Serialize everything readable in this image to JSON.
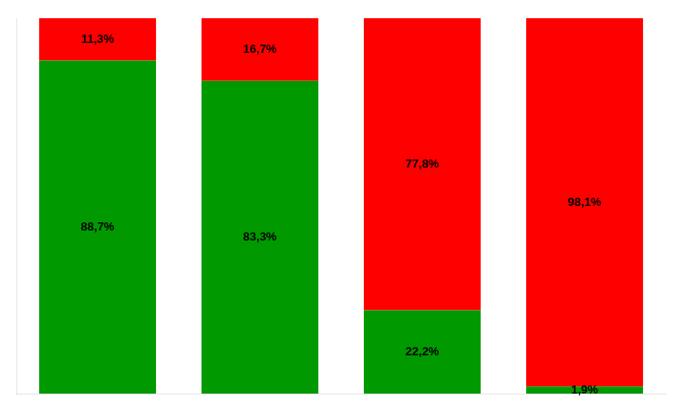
{
  "chart_data": {
    "type": "bar",
    "stacked": true,
    "categories": [
      null,
      null,
      null,
      null
    ],
    "series": [
      {
        "color": "#009900",
        "values": [
          88.7,
          83.3,
          22.2,
          1.9
        ],
        "value_labels": [
          "88,7%",
          "83,3%",
          "22,2%",
          "1,9%"
        ]
      },
      {
        "color": "#ff0000",
        "values": [
          11.3,
          16.7,
          77.8,
          98.1
        ],
        "value_labels": [
          "11,3%",
          "16,7%",
          "77,8%",
          "98,1%"
        ]
      }
    ],
    "ylim": [
      0,
      100
    ],
    "yticks": [
      0,
      20,
      40,
      60,
      80,
      100
    ],
    "grid": false,
    "data_labels": true,
    "tick_labels": false
  }
}
